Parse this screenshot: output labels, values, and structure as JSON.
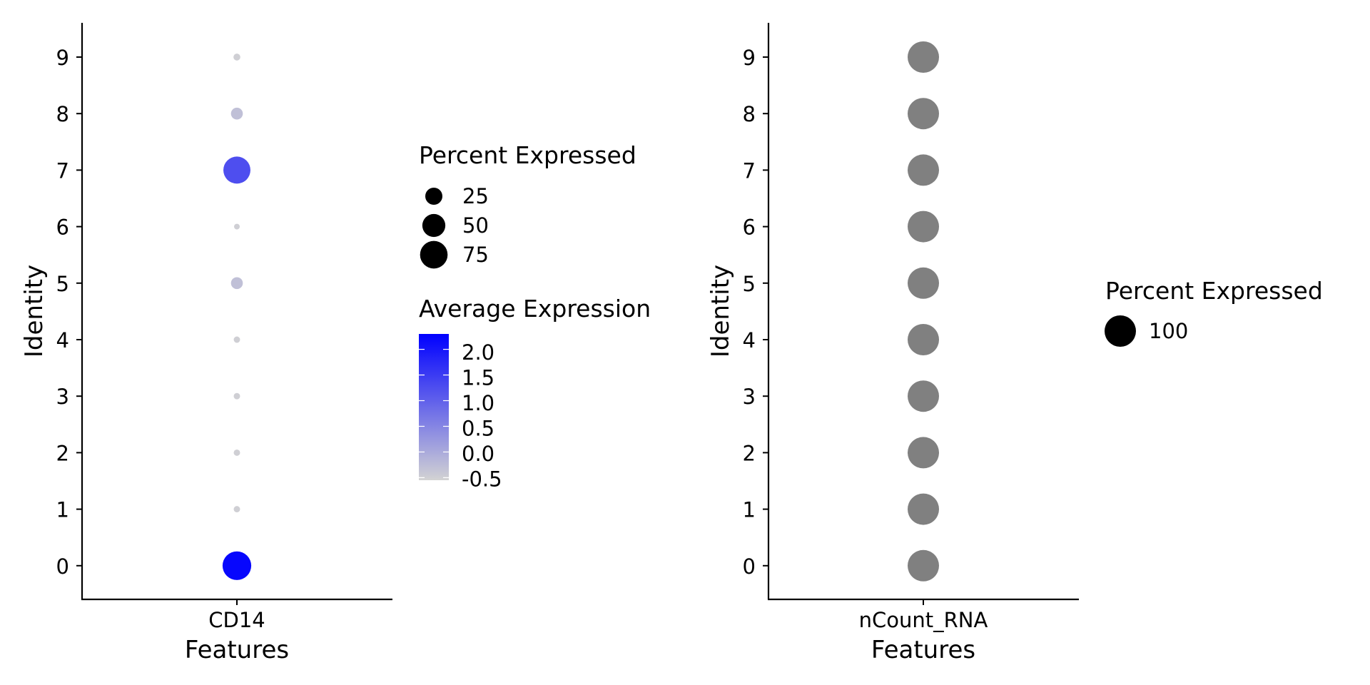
{
  "chart_data": [
    {
      "type": "scatter",
      "xlabel": "Features",
      "ylabel": "Identity",
      "categories": [
        "CD14"
      ],
      "identities": [
        "0",
        "1",
        "2",
        "3",
        "4",
        "5",
        "6",
        "7",
        "8",
        "9"
      ],
      "points": [
        {
          "identity": "0",
          "pct_expressed": 82,
          "avg_expression": 2.2
        },
        {
          "identity": "1",
          "pct_expressed": 1.5,
          "avg_expression": -0.5
        },
        {
          "identity": "2",
          "pct_expressed": 1.5,
          "avg_expression": -0.5
        },
        {
          "identity": "3",
          "pct_expressed": 1.5,
          "avg_expression": -0.5
        },
        {
          "identity": "4",
          "pct_expressed": 1.5,
          "avg_expression": -0.5
        },
        {
          "identity": "5",
          "pct_expressed": 10,
          "avg_expression": -0.3
        },
        {
          "identity": "6",
          "pct_expressed": 1,
          "avg_expression": -0.5
        },
        {
          "identity": "7",
          "pct_expressed": 72,
          "avg_expression": 1.25
        },
        {
          "identity": "8",
          "pct_expressed": 10,
          "avg_expression": -0.3
        },
        {
          "identity": "9",
          "pct_expressed": 2,
          "avg_expression": -0.5
        }
      ],
      "size_legend": {
        "title": "Percent Expressed",
        "breaks": [
          25,
          50,
          75
        ],
        "labels": [
          "25",
          "50",
          "75"
        ]
      },
      "color_legend": {
        "title": "Average Expression",
        "low": -0.55,
        "high": 2.3,
        "breaks": [
          2.0,
          1.5,
          1.0,
          0.5,
          0.0,
          -0.5
        ],
        "labels": [
          "2.0",
          "1.5",
          "1.0",
          "0.5",
          "0.0",
          "-0.5"
        ],
        "low_color": "#d3d3d3",
        "high_color": "#0000ff"
      }
    },
    {
      "type": "scatter",
      "xlabel": "Features",
      "ylabel": "Identity",
      "categories": [
        "nCount_RNA"
      ],
      "identities": [
        "0",
        "1",
        "2",
        "3",
        "4",
        "5",
        "6",
        "7",
        "8",
        "9"
      ],
      "points": [
        {
          "identity": "0",
          "pct_expressed": 100
        },
        {
          "identity": "1",
          "pct_expressed": 100
        },
        {
          "identity": "2",
          "pct_expressed": 100
        },
        {
          "identity": "3",
          "pct_expressed": 100
        },
        {
          "identity": "4",
          "pct_expressed": 100
        },
        {
          "identity": "5",
          "pct_expressed": 100
        },
        {
          "identity": "6",
          "pct_expressed": 100
        },
        {
          "identity": "7",
          "pct_expressed": 100
        },
        {
          "identity": "8",
          "pct_expressed": 100
        },
        {
          "identity": "9",
          "pct_expressed": 100
        }
      ],
      "point_color": "#808080",
      "size_legend": {
        "title": "Percent Expressed",
        "breaks": [
          100
        ],
        "labels": [
          "100"
        ]
      }
    }
  ]
}
